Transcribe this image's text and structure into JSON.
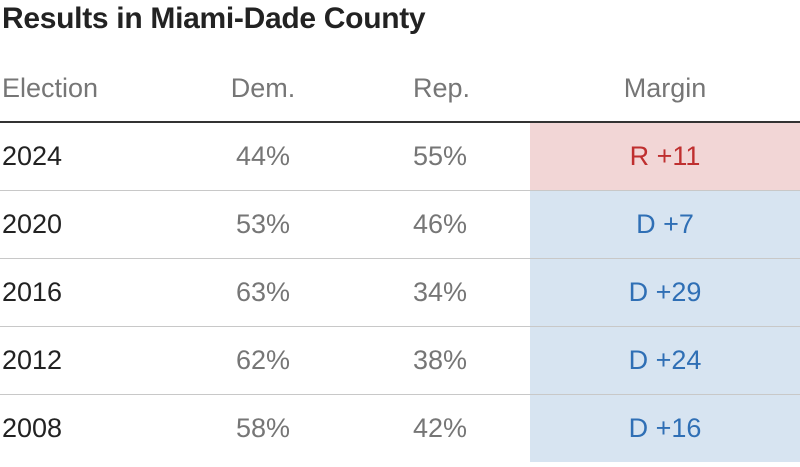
{
  "title": "Results in Miami-Dade County",
  "colors": {
    "rep_bg": "#f2d6d6",
    "rep_text": "#bf2f2f",
    "dem_bg": "#d7e4f1",
    "dem_text": "#2f6fb5"
  },
  "chart_data": {
    "type": "table",
    "title": "Results in Miami-Dade County",
    "columns": [
      "Election",
      "Dem.",
      "Rep.",
      "Margin"
    ],
    "rows": [
      {
        "election": "2024",
        "dem": "44%",
        "rep": "55%",
        "margin": "R +11",
        "margin_party": "R"
      },
      {
        "election": "2020",
        "dem": "53%",
        "rep": "46%",
        "margin": "D +7",
        "margin_party": "D"
      },
      {
        "election": "2016",
        "dem": "63%",
        "rep": "34%",
        "margin": "D +29",
        "margin_party": "D"
      },
      {
        "election": "2012",
        "dem": "62%",
        "rep": "38%",
        "margin": "D +24",
        "margin_party": "D"
      },
      {
        "election": "2008",
        "dem": "58%",
        "rep": "42%",
        "margin": "D +16",
        "margin_party": "D"
      }
    ]
  }
}
